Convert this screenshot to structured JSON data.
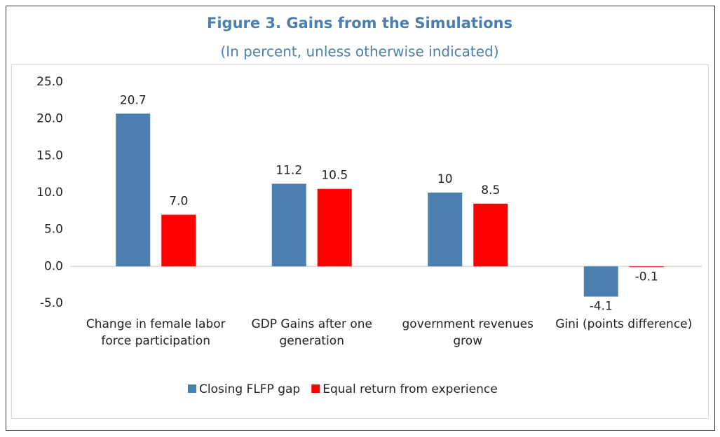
{
  "chart_data": {
    "type": "bar",
    "title": "Figure 3. Gains from the Simulations",
    "subtitle": "(In percent, unless otherwise indicated)",
    "categories": [
      "Change in female labor force participation",
      "GDP Gains after one generation",
      "government revenues grow",
      "Gini (points difference)"
    ],
    "series": [
      {
        "name": "Closing FLFP gap",
        "color": "#4a7fb0",
        "values": [
          20.7,
          11.2,
          10,
          -4.1
        ],
        "value_labels": [
          "20.7",
          "11.2",
          "10",
          "-4.1"
        ]
      },
      {
        "name": "Equal return from experience",
        "color": "#ff0000",
        "values": [
          7.0,
          10.5,
          8.5,
          -0.1
        ],
        "value_labels": [
          "7.0",
          "10.5",
          "8.5",
          "-0.1"
        ]
      }
    ],
    "ylim": [
      -5,
      25
    ],
    "yticks": [
      {
        "value": -5,
        "label": "-5.0"
      },
      {
        "value": 0,
        "label": "0.0"
      },
      {
        "value": 5,
        "label": "5.0"
      },
      {
        "value": 10,
        "label": "10.0"
      },
      {
        "value": 15,
        "label": "15.0"
      },
      {
        "value": 20,
        "label": "20.0"
      },
      {
        "value": 25,
        "label": "25.0"
      }
    ],
    "grid": false,
    "legend": "bottom"
  }
}
